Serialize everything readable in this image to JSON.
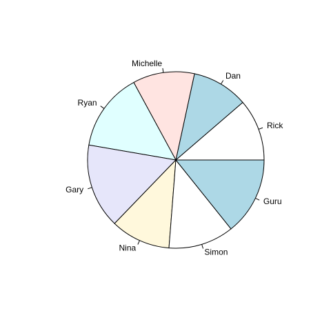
{
  "chart_data": {
    "type": "pie",
    "title": "",
    "start": "3 o'clock",
    "direction": "counterclockwise",
    "slices": [
      {
        "label": "Rick",
        "value": 1.0,
        "color": "#FFFFFF"
      },
      {
        "label": "Dan",
        "value": 0.91,
        "color": "#ADD8E6"
      },
      {
        "label": "Michelle",
        "value": 1.0,
        "color": "#FFE4E1"
      },
      {
        "label": "Ryan",
        "value": 1.27,
        "color": "#E0FFFF"
      },
      {
        "label": "Gary",
        "value": 1.37,
        "color": "#E6E6FA"
      },
      {
        "label": "Nina",
        "value": 0.97,
        "color": "#FFF8DC"
      },
      {
        "label": "Simon",
        "value": 1.06,
        "color": "#FFFFFF"
      },
      {
        "label": "Guru",
        "value": 1.26,
        "color": "#ADD8E6"
      }
    ]
  }
}
